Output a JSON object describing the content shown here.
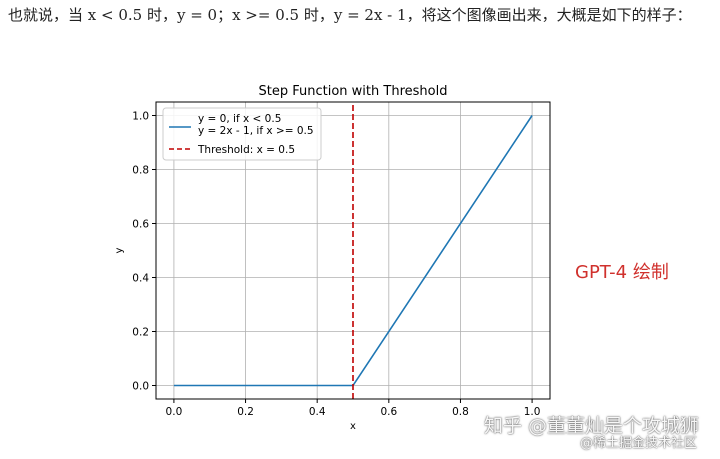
{
  "article": {
    "text": "也就说，当 x < 0.5 时，y = 0；x >= 0.5 时，y = 2x - 1，将这个图像画出来，大概是如下的样子："
  },
  "side_label": "GPT-4 绘制",
  "watermark": {
    "main": "知乎 @董董灿是个攻城狮",
    "sub": "@稀土掘金技术社区"
  },
  "chart_data": {
    "type": "line",
    "title": "Step Function with Threshold",
    "xlabel": "x",
    "ylabel": "y",
    "xlim": [
      -0.05,
      1.05
    ],
    "ylim": [
      -0.05,
      1.05
    ],
    "xticks": [
      "0.0",
      "0.2",
      "0.4",
      "0.6",
      "0.8",
      "1.0"
    ],
    "yticks": [
      "0.0",
      "0.2",
      "0.4",
      "0.6",
      "0.8",
      "1.0"
    ],
    "grid": true,
    "legend_position": "top-left",
    "series": [
      {
        "name": "y = 0, if x < 0.5\ny = 2x - 1, if x >= 0.5",
        "x": [
          0.0,
          0.5,
          1.0
        ],
        "y": [
          0.0,
          0.0,
          1.0
        ],
        "color": "#1f77b4",
        "style": "solid"
      },
      {
        "name": "Threshold: x = 0.5",
        "x": [
          0.5,
          0.5
        ],
        "y": [
          -0.05,
          1.05
        ],
        "color": "#c00000",
        "style": "dashed"
      }
    ]
  }
}
